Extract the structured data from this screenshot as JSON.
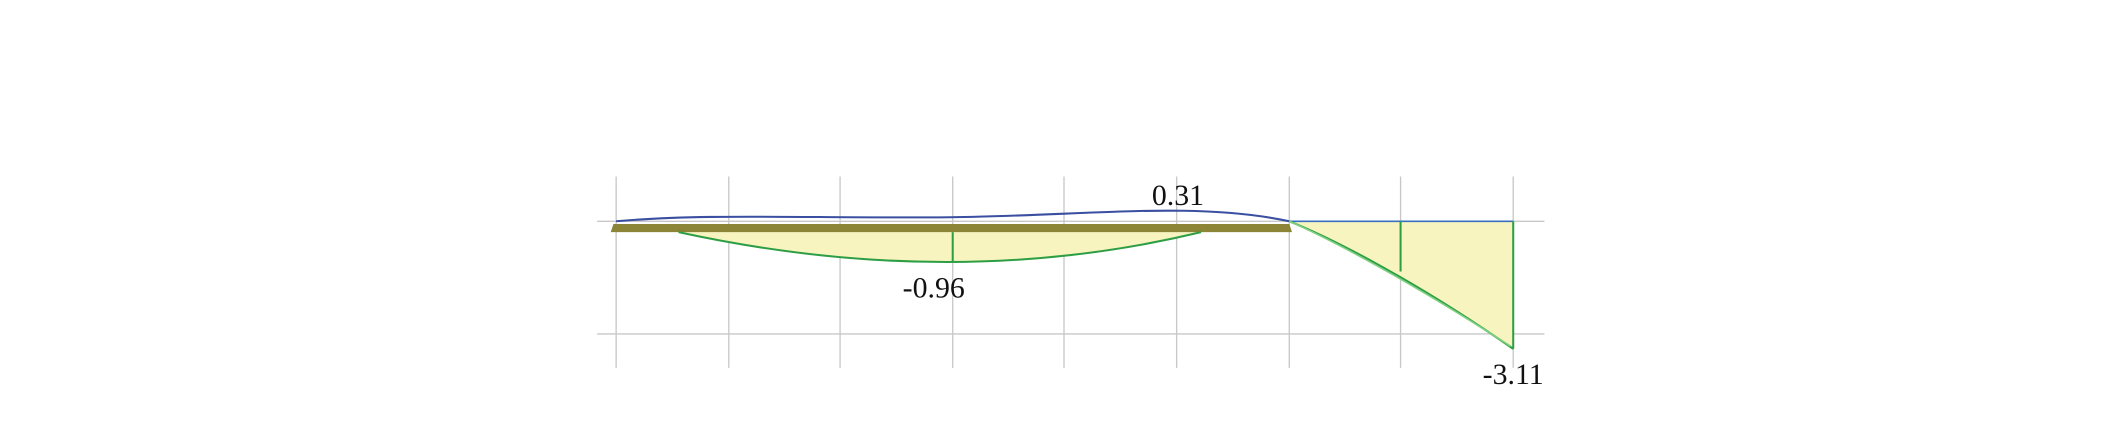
{
  "annotations": [
    "0.31",
    "-0.96",
    "-3.11"
  ]
}
